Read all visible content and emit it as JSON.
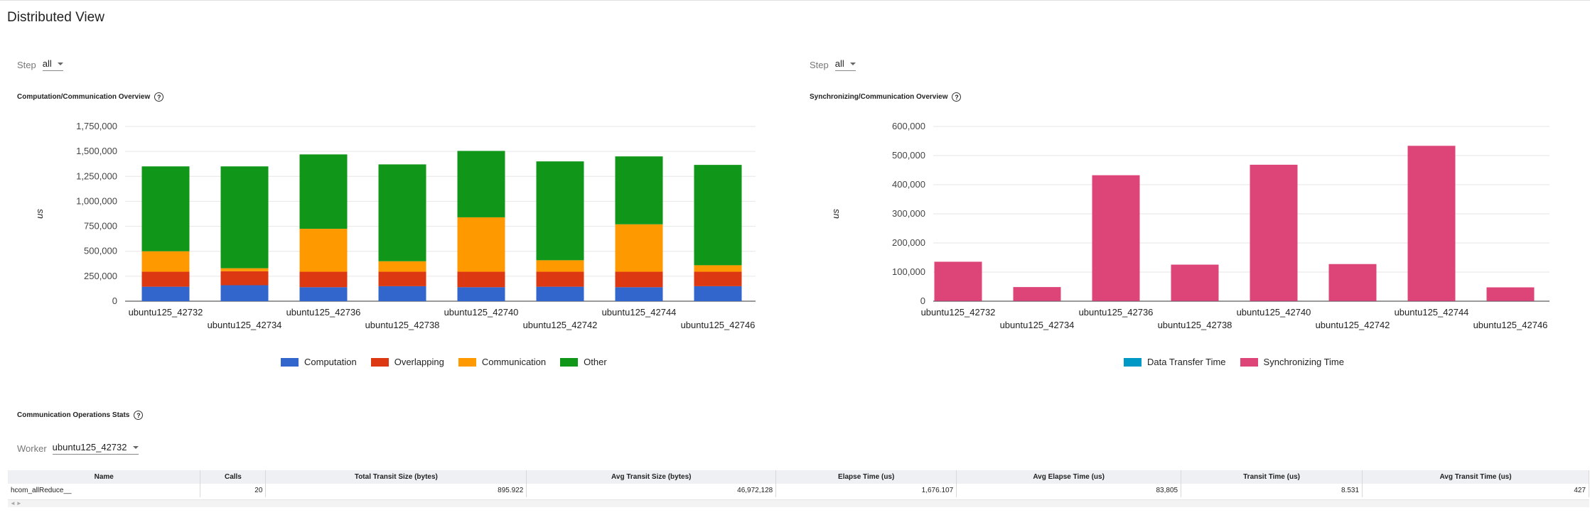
{
  "page": {
    "title": "Distributed View"
  },
  "left_panel": {
    "step_label": "Step",
    "step_value": "all",
    "section_title": "Computation/Communication Overview",
    "legend": [
      {
        "label": "Computation",
        "color": "#3366cc"
      },
      {
        "label": "Overlapping",
        "color": "#dc3912"
      },
      {
        "label": "Communication",
        "color": "#ff9900"
      },
      {
        "label": "Other",
        "color": "#109618"
      }
    ]
  },
  "right_panel": {
    "step_label": "Step",
    "step_value": "all",
    "section_title": "Synchronizing/Communication Overview",
    "legend": [
      {
        "label": "Data Transfer Time",
        "color": "#0099c6"
      },
      {
        "label": "Synchronizing Time",
        "color": "#dd4477"
      }
    ]
  },
  "chart_data": [
    {
      "type": "bar",
      "stacked": true,
      "categories": [
        "ubuntu125_42732",
        "ubuntu125_42734",
        "ubuntu125_42736",
        "ubuntu125_42738",
        "ubuntu125_42740",
        "ubuntu125_42742",
        "ubuntu125_42744",
        "ubuntu125_42746"
      ],
      "series": [
        {
          "name": "Computation",
          "color": "#3366cc",
          "values": [
            145000,
            160000,
            140000,
            150000,
            140000,
            145000,
            140000,
            150000
          ]
        },
        {
          "name": "Overlapping",
          "color": "#dc3912",
          "values": [
            150000,
            140000,
            155000,
            145000,
            155000,
            150000,
            155000,
            145000
          ]
        },
        {
          "name": "Communication",
          "color": "#ff9900",
          "values": [
            205000,
            30000,
            430000,
            105000,
            545000,
            115000,
            475000,
            65000
          ]
        },
        {
          "name": "Other",
          "color": "#109618",
          "values": [
            850000,
            1020000,
            745000,
            970000,
            665000,
            990000,
            680000,
            1005000
          ]
        }
      ],
      "ylabel": "us",
      "ylim": [
        0,
        1750000
      ],
      "yticks": [
        0,
        250000,
        500000,
        750000,
        1000000,
        1250000,
        1500000,
        1750000
      ],
      "ytick_labels": [
        "0",
        "250,000",
        "500,000",
        "750,000",
        "1,000,000",
        "1,250,000",
        "1,500,000",
        "1,750,000"
      ],
      "grid": true,
      "legend_position": "bottom"
    },
    {
      "type": "bar",
      "stacked": true,
      "categories": [
        "ubuntu125_42732",
        "ubuntu125_42734",
        "ubuntu125_42736",
        "ubuntu125_42738",
        "ubuntu125_42740",
        "ubuntu125_42742",
        "ubuntu125_42744",
        "ubuntu125_42746"
      ],
      "series": [
        {
          "name": "Data Transfer Time",
          "color": "#0099c6",
          "values": [
            500,
            500,
            500,
            500,
            500,
            500,
            500,
            500
          ]
        },
        {
          "name": "Synchronizing Time",
          "color": "#dd4477",
          "values": [
            135000,
            48000,
            432000,
            125000,
            468000,
            127000,
            533000,
            47000
          ]
        }
      ],
      "ylabel": "us",
      "ylim": [
        0,
        600000
      ],
      "yticks": [
        0,
        100000,
        200000,
        300000,
        400000,
        500000,
        600000
      ],
      "ytick_labels": [
        "0",
        "100,000",
        "200,000",
        "300,000",
        "400,000",
        "500,000",
        "600,000"
      ],
      "grid": true,
      "legend_position": "bottom"
    }
  ],
  "comm_stats": {
    "section_title": "Communication Operations Stats",
    "worker_label": "Worker",
    "worker_value": "ubuntu125_42732",
    "columns": [
      "Name",
      "Calls",
      "Total Transit Size (bytes)",
      "Avg Transit Size (bytes)",
      "Elapse Time (us)",
      "Avg Elapse Time (us)",
      "Transit Time (us)",
      "Avg Transit Time (us)"
    ],
    "rows": [
      [
        "hcom_allReduce__",
        "20",
        "895.922",
        "46,972,128",
        "1,676.107",
        "83,805",
        "8.531",
        "427"
      ]
    ]
  }
}
